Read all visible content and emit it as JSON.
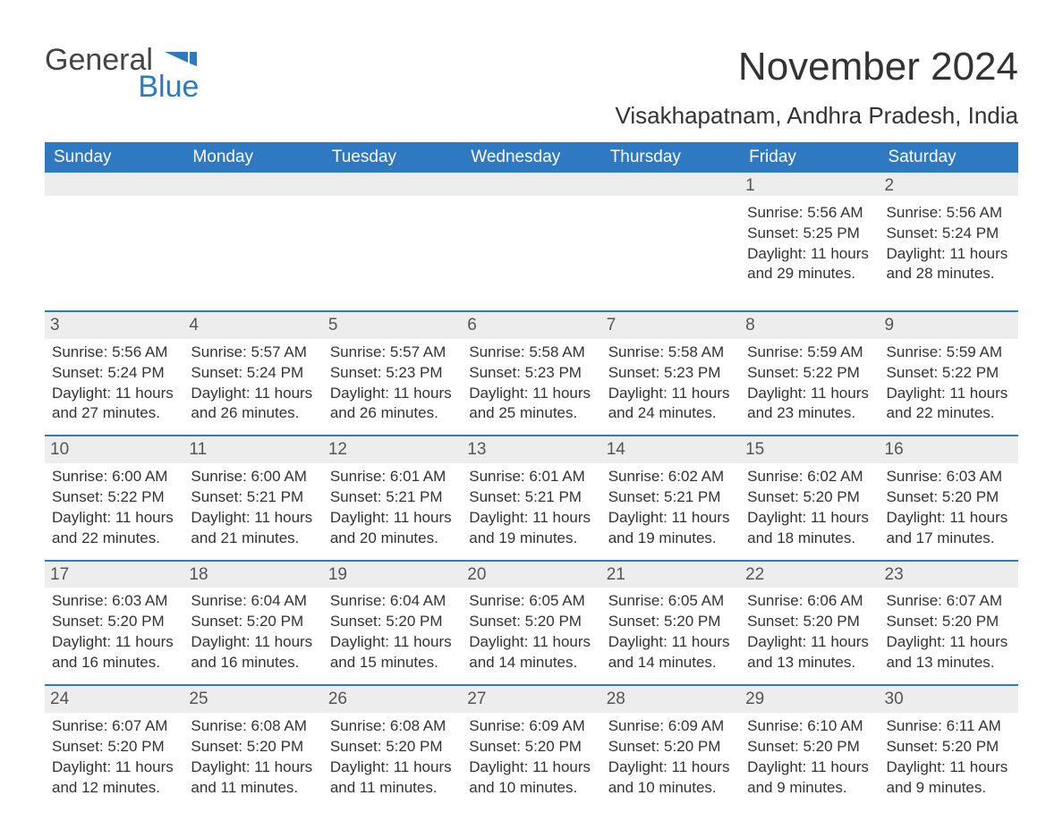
{
  "logo": {
    "general": "General",
    "blue": "Blue",
    "flag_color": "#2f79c2"
  },
  "header": {
    "month_title": "November 2024",
    "location": "Visakhapatnam, Andhra Pradesh, India"
  },
  "colors": {
    "header_bg": "#2f79c2",
    "header_text": "#ffffff",
    "daynum_bg": "#ededed",
    "body_text": "#333333",
    "rule": "#2f79c2"
  },
  "days_of_week": [
    "Sunday",
    "Monday",
    "Tuesday",
    "Wednesday",
    "Thursday",
    "Friday",
    "Saturday"
  ],
  "weeks": [
    [
      null,
      null,
      null,
      null,
      null,
      {
        "n": "1",
        "sunrise": "5:56 AM",
        "sunset": "5:25 PM",
        "daylight": "11 hours and 29 minutes."
      },
      {
        "n": "2",
        "sunrise": "5:56 AM",
        "sunset": "5:24 PM",
        "daylight": "11 hours and 28 minutes."
      }
    ],
    [
      {
        "n": "3",
        "sunrise": "5:56 AM",
        "sunset": "5:24 PM",
        "daylight": "11 hours and 27 minutes."
      },
      {
        "n": "4",
        "sunrise": "5:57 AM",
        "sunset": "5:24 PM",
        "daylight": "11 hours and 26 minutes."
      },
      {
        "n": "5",
        "sunrise": "5:57 AM",
        "sunset": "5:23 PM",
        "daylight": "11 hours and 26 minutes."
      },
      {
        "n": "6",
        "sunrise": "5:58 AM",
        "sunset": "5:23 PM",
        "daylight": "11 hours and 25 minutes."
      },
      {
        "n": "7",
        "sunrise": "5:58 AM",
        "sunset": "5:23 PM",
        "daylight": "11 hours and 24 minutes."
      },
      {
        "n": "8",
        "sunrise": "5:59 AM",
        "sunset": "5:22 PM",
        "daylight": "11 hours and 23 minutes."
      },
      {
        "n": "9",
        "sunrise": "5:59 AM",
        "sunset": "5:22 PM",
        "daylight": "11 hours and 22 minutes."
      }
    ],
    [
      {
        "n": "10",
        "sunrise": "6:00 AM",
        "sunset": "5:22 PM",
        "daylight": "11 hours and 22 minutes."
      },
      {
        "n": "11",
        "sunrise": "6:00 AM",
        "sunset": "5:21 PM",
        "daylight": "11 hours and 21 minutes."
      },
      {
        "n": "12",
        "sunrise": "6:01 AM",
        "sunset": "5:21 PM",
        "daylight": "11 hours and 20 minutes."
      },
      {
        "n": "13",
        "sunrise": "6:01 AM",
        "sunset": "5:21 PM",
        "daylight": "11 hours and 19 minutes."
      },
      {
        "n": "14",
        "sunrise": "6:02 AM",
        "sunset": "5:21 PM",
        "daylight": "11 hours and 19 minutes."
      },
      {
        "n": "15",
        "sunrise": "6:02 AM",
        "sunset": "5:20 PM",
        "daylight": "11 hours and 18 minutes."
      },
      {
        "n": "16",
        "sunrise": "6:03 AM",
        "sunset": "5:20 PM",
        "daylight": "11 hours and 17 minutes."
      }
    ],
    [
      {
        "n": "17",
        "sunrise": "6:03 AM",
        "sunset": "5:20 PM",
        "daylight": "11 hours and 16 minutes."
      },
      {
        "n": "18",
        "sunrise": "6:04 AM",
        "sunset": "5:20 PM",
        "daylight": "11 hours and 16 minutes."
      },
      {
        "n": "19",
        "sunrise": "6:04 AM",
        "sunset": "5:20 PM",
        "daylight": "11 hours and 15 minutes."
      },
      {
        "n": "20",
        "sunrise": "6:05 AM",
        "sunset": "5:20 PM",
        "daylight": "11 hours and 14 minutes."
      },
      {
        "n": "21",
        "sunrise": "6:05 AM",
        "sunset": "5:20 PM",
        "daylight": "11 hours and 14 minutes."
      },
      {
        "n": "22",
        "sunrise": "6:06 AM",
        "sunset": "5:20 PM",
        "daylight": "11 hours and 13 minutes."
      },
      {
        "n": "23",
        "sunrise": "6:07 AM",
        "sunset": "5:20 PM",
        "daylight": "11 hours and 13 minutes."
      }
    ],
    [
      {
        "n": "24",
        "sunrise": "6:07 AM",
        "sunset": "5:20 PM",
        "daylight": "11 hours and 12 minutes."
      },
      {
        "n": "25",
        "sunrise": "6:08 AM",
        "sunset": "5:20 PM",
        "daylight": "11 hours and 11 minutes."
      },
      {
        "n": "26",
        "sunrise": "6:08 AM",
        "sunset": "5:20 PM",
        "daylight": "11 hours and 11 minutes."
      },
      {
        "n": "27",
        "sunrise": "6:09 AM",
        "sunset": "5:20 PM",
        "daylight": "11 hours and 10 minutes."
      },
      {
        "n": "28",
        "sunrise": "6:09 AM",
        "sunset": "5:20 PM",
        "daylight": "11 hours and 10 minutes."
      },
      {
        "n": "29",
        "sunrise": "6:10 AM",
        "sunset": "5:20 PM",
        "daylight": "11 hours and 9 minutes."
      },
      {
        "n": "30",
        "sunrise": "6:11 AM",
        "sunset": "5:20 PM",
        "daylight": "11 hours and 9 minutes."
      }
    ]
  ],
  "labels": {
    "sunrise": "Sunrise: ",
    "sunset": "Sunset: ",
    "daylight": "Daylight: "
  }
}
